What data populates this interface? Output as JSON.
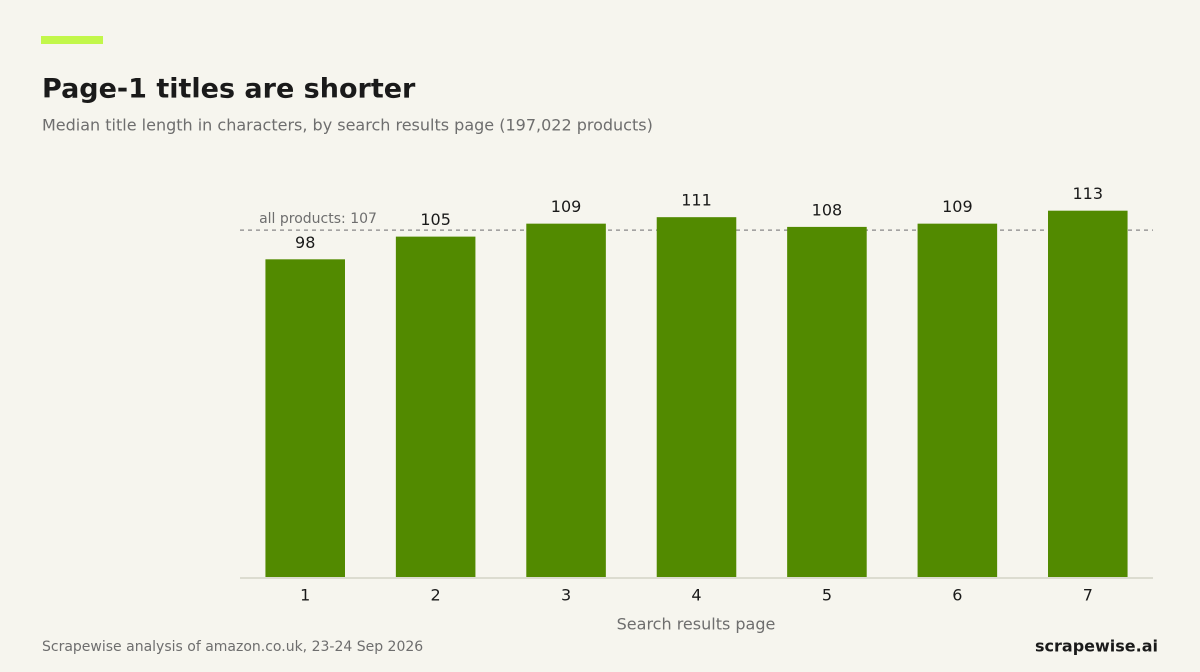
{
  "chart_data": {
    "type": "bar",
    "title": "Page-1 titles are shorter",
    "subtitle": "Median title length in characters, by search results page (197,022 products)",
    "x_label": "Search results page",
    "categories": [
      "1",
      "2",
      "3",
      "4",
      "5",
      "6",
      "7"
    ],
    "values": [
      98,
      105,
      109,
      111,
      108,
      109,
      113
    ],
    "color": "#528a00",
    "ylim": [
      0,
      120
    ],
    "reference_line": {
      "value": 107,
      "label": "all products: 107"
    },
    "source": "Scrapewise analysis of amazon.co.uk, 23-24 Sep 2026",
    "brand": "scrapewise.ai"
  }
}
